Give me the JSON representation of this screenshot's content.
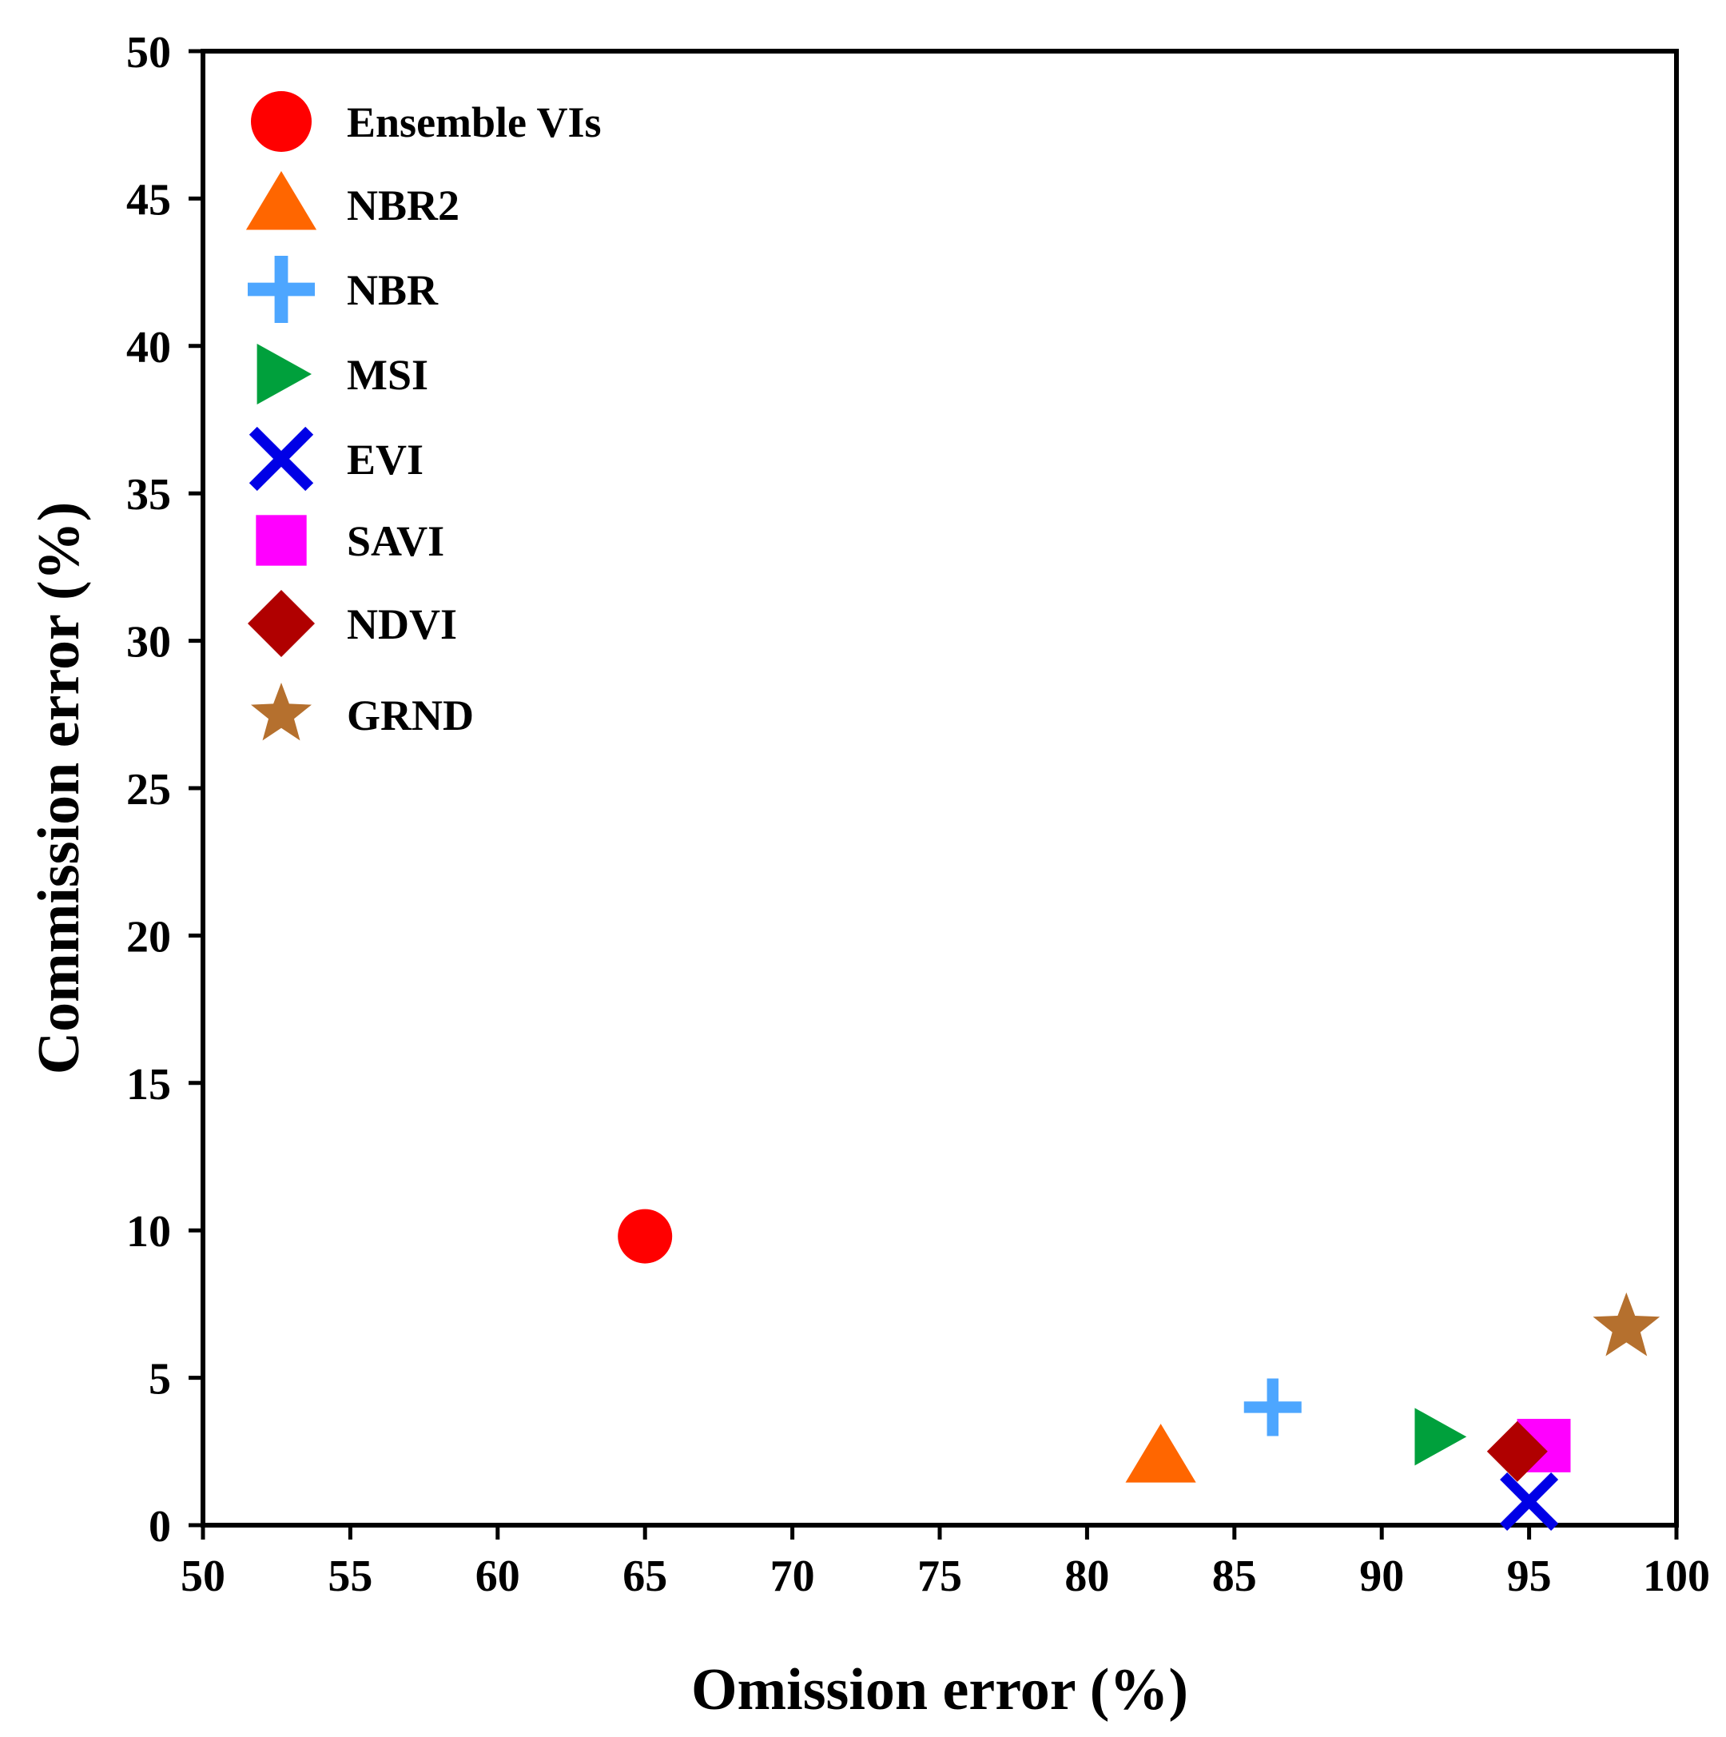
{
  "chart_data": {
    "type": "scatter",
    "title": "",
    "xlabel": "Omission error (%)",
    "ylabel": "Commission error (%)",
    "xlim": [
      50,
      100
    ],
    "ylim": [
      0,
      50
    ],
    "xticks": [
      50,
      55,
      60,
      65,
      70,
      75,
      80,
      85,
      90,
      95,
      100
    ],
    "yticks": [
      0,
      5,
      10,
      15,
      20,
      25,
      30,
      35,
      40,
      45,
      50
    ],
    "grid": false,
    "legend_position": "top-left",
    "series": [
      {
        "name": "Ensemble VIs",
        "marker": "circle",
        "color": "#ff0000",
        "x": 65.0,
        "y": 9.8
      },
      {
        "name": "NBR2",
        "marker": "triangle-up",
        "color": "#ff6600",
        "x": 82.5,
        "y": 2.3
      },
      {
        "name": "NBR",
        "marker": "plus",
        "color": "#4da6ff",
        "x": 86.3,
        "y": 4.0
      },
      {
        "name": "MSI",
        "marker": "triangle-right",
        "color": "#00a03c",
        "x": 91.9,
        "y": 3.0
      },
      {
        "name": "EVI",
        "marker": "x",
        "color": "#0000e6",
        "x": 95.0,
        "y": 0.8
      },
      {
        "name": "SAVI",
        "marker": "square",
        "color": "#ff00ff",
        "x": 95.5,
        "y": 2.7
      },
      {
        "name": "NDVI",
        "marker": "diamond",
        "color": "#b00000",
        "x": 94.6,
        "y": 2.5
      },
      {
        "name": "GRND",
        "marker": "star",
        "color": "#b5702e",
        "x": 98.3,
        "y": 6.7
      }
    ]
  }
}
